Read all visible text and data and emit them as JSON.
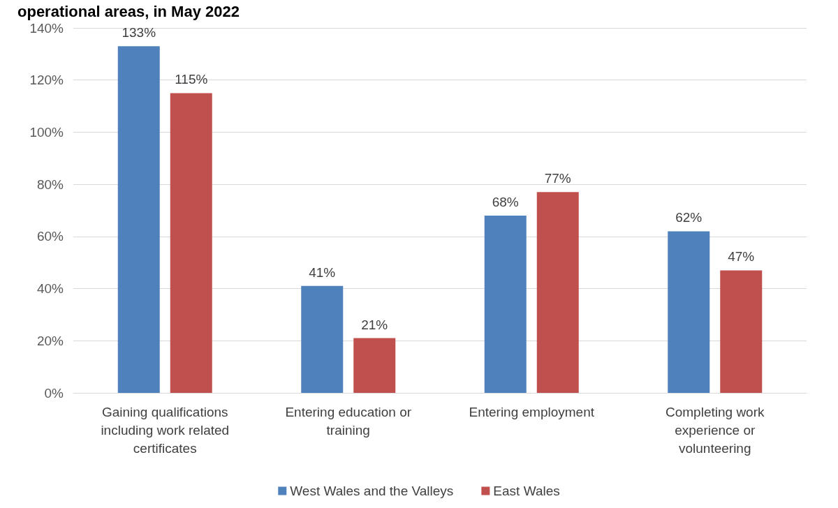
{
  "chart_data": {
    "type": "bar",
    "title": "operational areas, in May 2022",
    "categories": [
      "Gaining qualifications including work related certificates",
      "Entering education or training",
      "Entering employment",
      "Completing work experience or volunteering"
    ],
    "series": [
      {
        "name": "West Wales and the Valleys",
        "color": "#4f81bd",
        "values": [
          133,
          41,
          68,
          62
        ],
        "value_labels": [
          "133%",
          "41%",
          "68%",
          "62%"
        ]
      },
      {
        "name": "East Wales",
        "color": "#c0504d",
        "values": [
          115,
          21,
          77,
          47
        ],
        "value_labels": [
          "115%",
          "21%",
          "77%",
          "47%"
        ]
      }
    ],
    "ylim": [
      0,
      140
    ],
    "yticks": [
      {
        "value": 0,
        "label": "0%"
      },
      {
        "value": 20,
        "label": "20%"
      },
      {
        "value": 40,
        "label": "40%"
      },
      {
        "value": 60,
        "label": "60%"
      },
      {
        "value": 80,
        "label": "80%"
      },
      {
        "value": 100,
        "label": "100%"
      },
      {
        "value": 120,
        "label": "120%"
      },
      {
        "value": 140,
        "label": "140%"
      }
    ],
    "grid": "y",
    "legend": "bottom"
  }
}
